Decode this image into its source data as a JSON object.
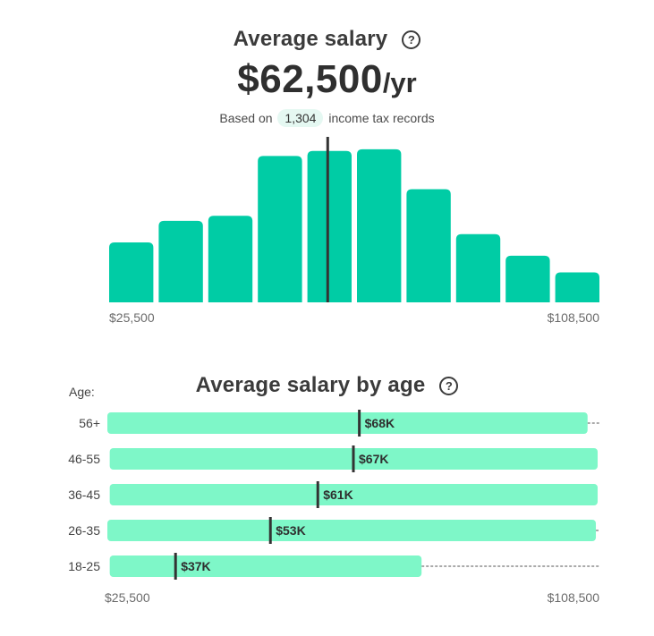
{
  "header": {
    "title": "Average salary",
    "help_icon": "question-circle-icon",
    "amount": "$62,500",
    "unit": "/yr",
    "based_on_prefix": "Based on",
    "record_count": "1,304",
    "based_on_suffix": "income tax records"
  },
  "age_section": {
    "title": "Average salary by age",
    "help_icon": "question-circle-icon",
    "age_axis_label": "Age:"
  },
  "colors": {
    "histogram_bar": "#00cca5",
    "age_bar": "#7ef7c8",
    "marker": "#333333",
    "dashed_line": "#555555"
  },
  "chart_data": [
    {
      "type": "bar",
      "title": "Average salary",
      "x_range": [
        25500,
        108500
      ],
      "x_tick_labels": [
        "$25,500",
        "$108,500"
      ],
      "bins": 10,
      "values": [
        0.36,
        0.49,
        0.52,
        0.88,
        0.91,
        0.92,
        0.68,
        0.41,
        0.28,
        0.18
      ],
      "average_marker": 62500
    },
    {
      "type": "bar",
      "orientation": "horizontal",
      "title": "Average salary by age",
      "x_range": [
        25500,
        108500
      ],
      "x_tick_labels": [
        "$25,500",
        "$108,500"
      ],
      "categories": [
        "56+",
        "46-55",
        "36-45",
        "26-35",
        "18-25"
      ],
      "ranges": [
        [
          25500,
          106500
        ],
        [
          25900,
          108200
        ],
        [
          25900,
          108200
        ],
        [
          25500,
          107900
        ],
        [
          25900,
          78500
        ]
      ],
      "averages": [
        68000,
        67000,
        61000,
        53000,
        37000
      ],
      "value_labels": [
        "$68K",
        "$67K",
        "$61K",
        "$53K",
        "$37K"
      ]
    }
  ]
}
